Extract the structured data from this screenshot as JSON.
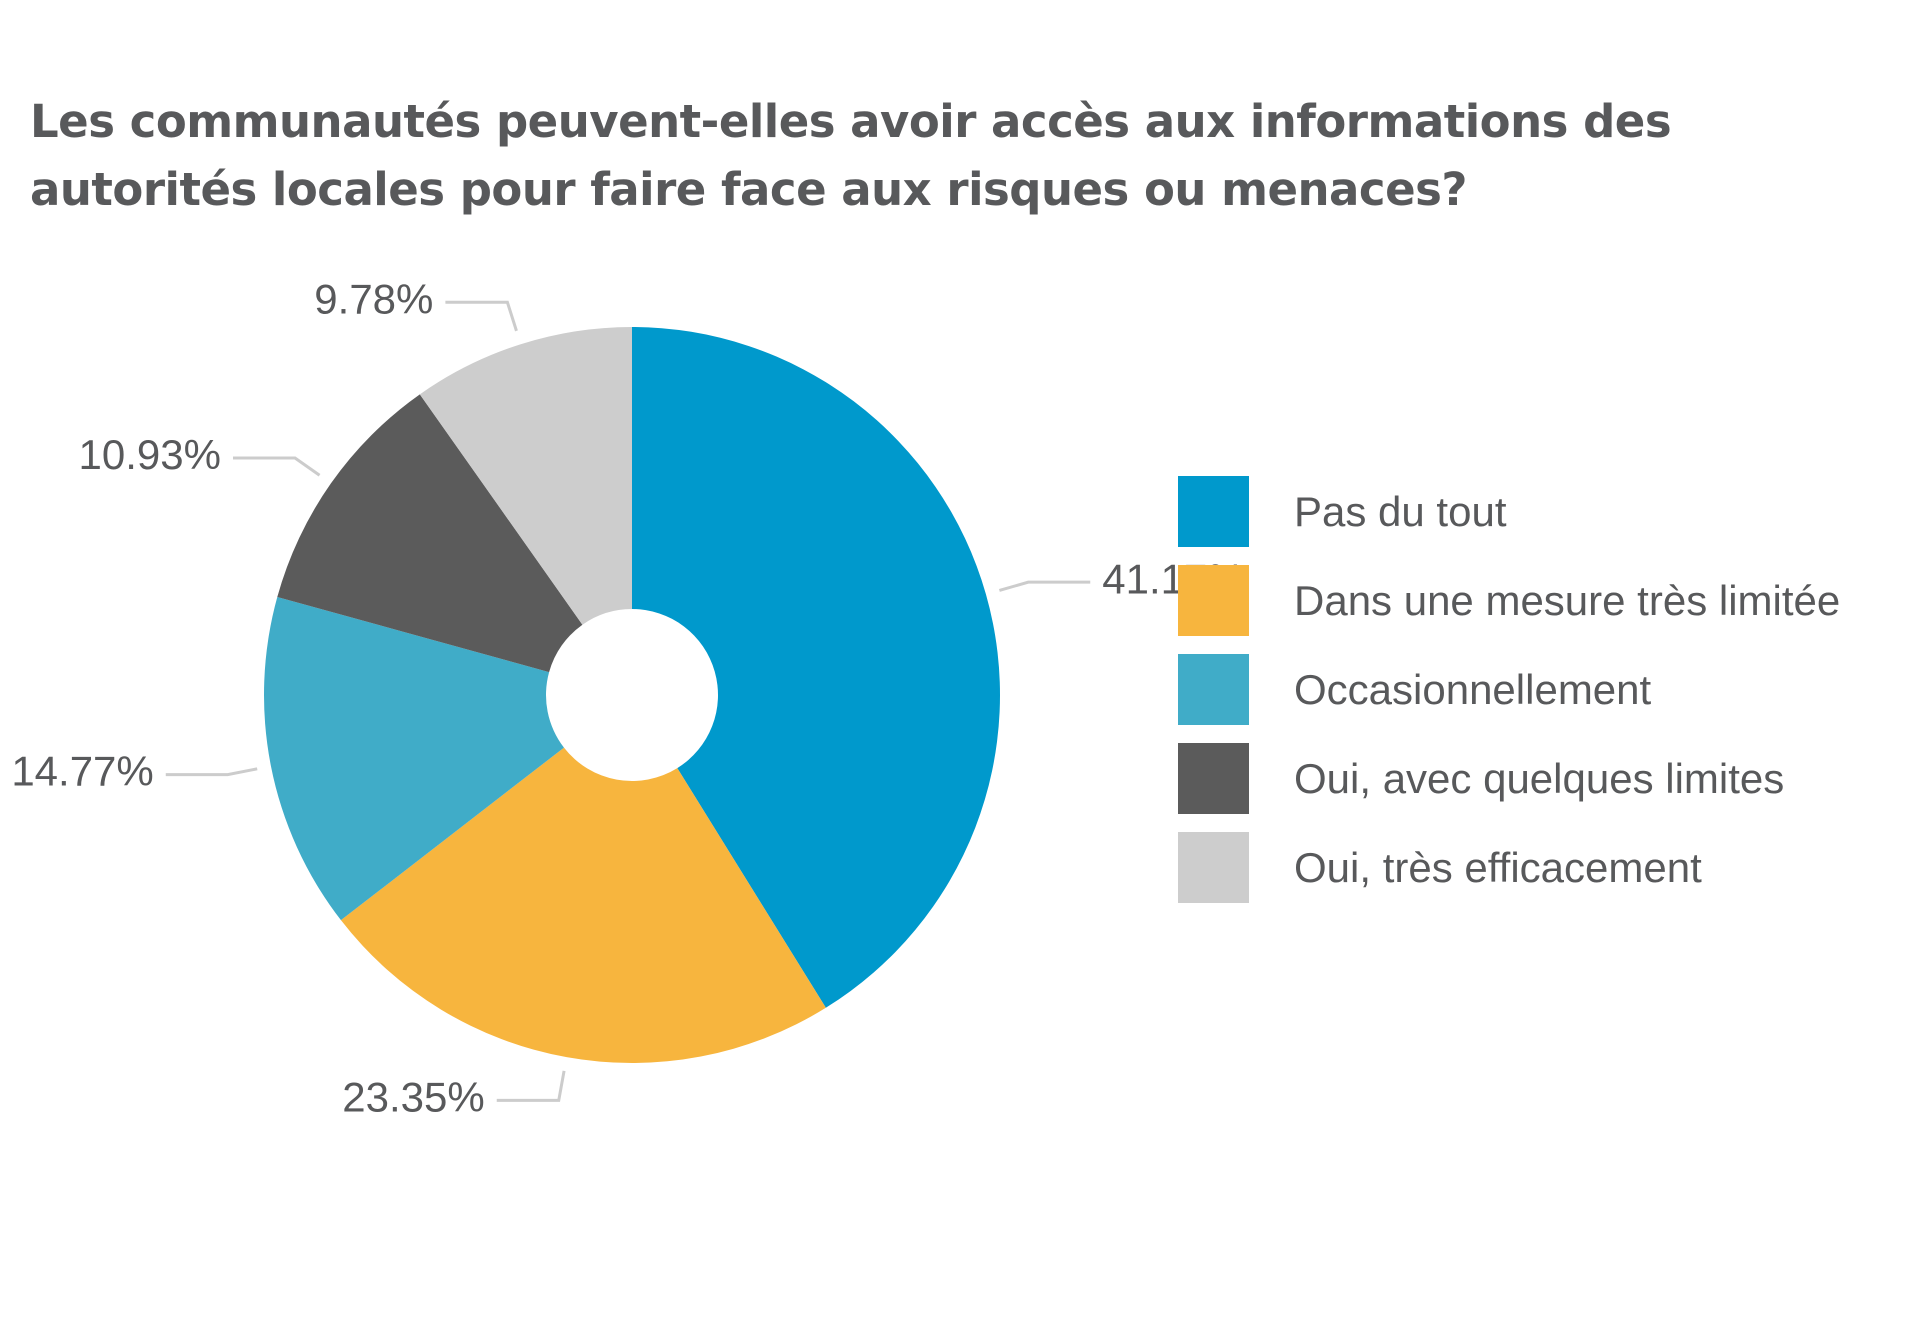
{
  "chart_data": {
    "type": "pie",
    "title_lines": [
      "Les communautés peuvent-elles avoir accès aux informations des",
      "autorités locales pour faire face aux risques ou menaces?"
    ],
    "categories": [
      "Pas du tout",
      "Dans une mesure très limitée",
      "Occasionnellement",
      "Oui, avec quelques limites",
      "Oui, très efficacement"
    ],
    "values": [
      41.17,
      23.35,
      14.77,
      10.93,
      9.78
    ],
    "value_labels": [
      "41.17%",
      "23.35%",
      "14.77%",
      "10.93%",
      "9.78%"
    ],
    "colors": [
      "#0099cc",
      "#f7b53e",
      "#40acc8",
      "#5b5b5b",
      "#cdcdcd"
    ],
    "donut": true,
    "legend_position": "right",
    "start_angle": "top, clockwise"
  }
}
